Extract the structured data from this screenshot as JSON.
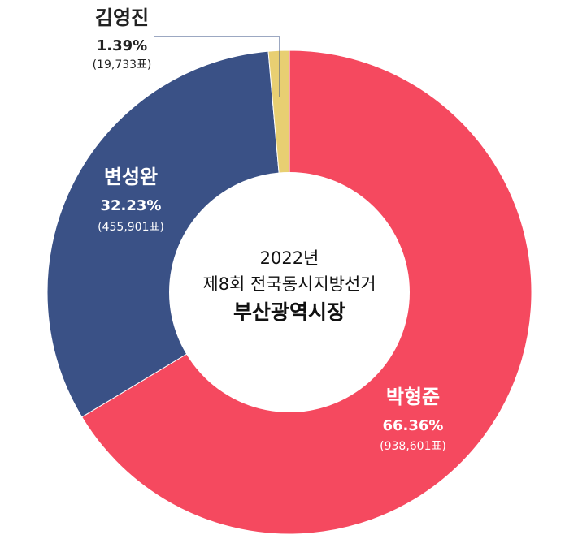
{
  "chart_data": {
    "type": "pie",
    "donut": true,
    "center_text": [
      "2022년",
      "제8회 전국동시지방선거",
      "부산광역시장"
    ],
    "slices": [
      {
        "name": "박형준",
        "percent_label": "66.36%",
        "votes_label": "(938,601표)",
        "value": 66.36,
        "color": "#f5495f",
        "label_color": "#ffffff"
      },
      {
        "name": "변성완",
        "percent_label": "32.23%",
        "votes_label": "(455,901표)",
        "value": 32.23,
        "color": "#3a5186",
        "label_color": "#ffffff"
      },
      {
        "name": "김영진",
        "percent_label": "1.39%",
        "votes_label": "(19,733표)",
        "value": 1.39,
        "color": "#e8cf72",
        "label_color": "#222222"
      }
    ],
    "start": "12 o'clock",
    "direction": "clockwise"
  }
}
